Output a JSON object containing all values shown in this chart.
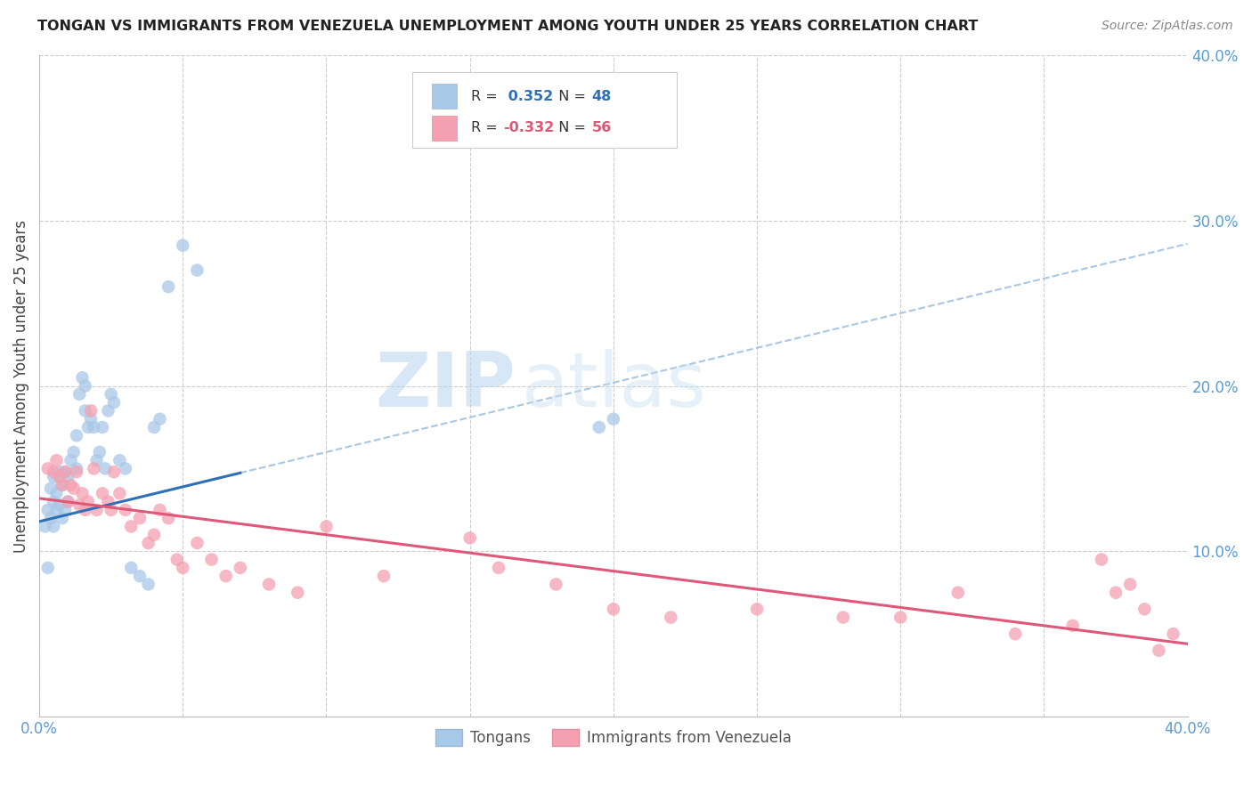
{
  "title": "TONGAN VS IMMIGRANTS FROM VENEZUELA UNEMPLOYMENT AMONG YOUTH UNDER 25 YEARS CORRELATION CHART",
  "source": "Source: ZipAtlas.com",
  "ylabel": "Unemployment Among Youth under 25 years",
  "xlim": [
    0.0,
    0.4
  ],
  "ylim": [
    0.0,
    0.4
  ],
  "legend_label1": "Tongans",
  "legend_label2": "Immigrants from Venezuela",
  "R1": 0.352,
  "N1": 48,
  "R2": -0.332,
  "N2": 56,
  "color_blue": "#a8c8e8",
  "color_pink": "#f4a0b0",
  "color_line_blue": "#3070b8",
  "color_line_pink": "#e05878",
  "color_dashed": "#a0c0e0",
  "background": "#ffffff",
  "watermark_zip": "ZIP",
  "watermark_atlas": "atlas",
  "blue_intercept": 0.118,
  "blue_slope": 0.42,
  "pink_intercept": 0.132,
  "pink_slope": -0.22,
  "blue_points_x": [
    0.002,
    0.003,
    0.003,
    0.004,
    0.004,
    0.005,
    0.005,
    0.005,
    0.006,
    0.006,
    0.007,
    0.007,
    0.008,
    0.008,
    0.009,
    0.009,
    0.01,
    0.01,
    0.011,
    0.012,
    0.013,
    0.013,
    0.014,
    0.015,
    0.016,
    0.016,
    0.017,
    0.018,
    0.019,
    0.02,
    0.021,
    0.022,
    0.023,
    0.024,
    0.025,
    0.026,
    0.028,
    0.03,
    0.032,
    0.035,
    0.038,
    0.04,
    0.042,
    0.045,
    0.05,
    0.055,
    0.195,
    0.2
  ],
  "blue_points_y": [
    0.115,
    0.09,
    0.125,
    0.12,
    0.138,
    0.13,
    0.115,
    0.145,
    0.125,
    0.135,
    0.128,
    0.148,
    0.14,
    0.12,
    0.125,
    0.148,
    0.145,
    0.13,
    0.155,
    0.16,
    0.17,
    0.15,
    0.195,
    0.205,
    0.2,
    0.185,
    0.175,
    0.18,
    0.175,
    0.155,
    0.16,
    0.175,
    0.15,
    0.185,
    0.195,
    0.19,
    0.155,
    0.15,
    0.09,
    0.085,
    0.08,
    0.175,
    0.18,
    0.26,
    0.285,
    0.27,
    0.175,
    0.18
  ],
  "pink_points_x": [
    0.003,
    0.005,
    0.006,
    0.007,
    0.008,
    0.009,
    0.01,
    0.011,
    0.012,
    0.013,
    0.014,
    0.015,
    0.016,
    0.017,
    0.018,
    0.019,
    0.02,
    0.022,
    0.024,
    0.025,
    0.026,
    0.028,
    0.03,
    0.032,
    0.035,
    0.038,
    0.04,
    0.042,
    0.045,
    0.048,
    0.05,
    0.055,
    0.06,
    0.065,
    0.07,
    0.08,
    0.09,
    0.1,
    0.12,
    0.15,
    0.16,
    0.18,
    0.2,
    0.22,
    0.25,
    0.28,
    0.3,
    0.32,
    0.34,
    0.36,
    0.37,
    0.375,
    0.38,
    0.385,
    0.39,
    0.395
  ],
  "pink_points_y": [
    0.15,
    0.148,
    0.155,
    0.145,
    0.14,
    0.148,
    0.13,
    0.14,
    0.138,
    0.148,
    0.128,
    0.135,
    0.125,
    0.13,
    0.185,
    0.15,
    0.125,
    0.135,
    0.13,
    0.125,
    0.148,
    0.135,
    0.125,
    0.115,
    0.12,
    0.105,
    0.11,
    0.125,
    0.12,
    0.095,
    0.09,
    0.105,
    0.095,
    0.085,
    0.09,
    0.08,
    0.075,
    0.115,
    0.085,
    0.108,
    0.09,
    0.08,
    0.065,
    0.06,
    0.065,
    0.06,
    0.06,
    0.075,
    0.05,
    0.055,
    0.095,
    0.075,
    0.08,
    0.065,
    0.04,
    0.05
  ]
}
